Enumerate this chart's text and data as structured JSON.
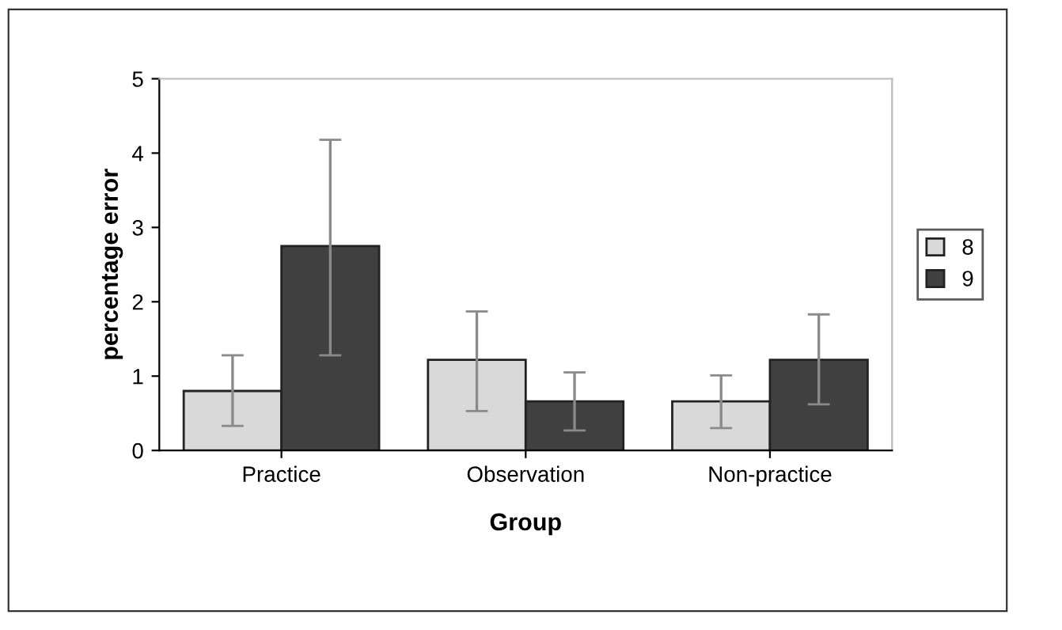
{
  "chart_data": {
    "type": "bar",
    "xlabel": "Group",
    "ylabel": "percentage error",
    "categories": [
      "Practice",
      "Observation",
      "Non-practice"
    ],
    "series": [
      {
        "name": "8",
        "color": "#d9d9d9",
        "values": [
          0.8,
          1.22,
          0.66
        ],
        "errors": [
          [
            0.33,
            1.28
          ],
          [
            0.53,
            1.87
          ],
          [
            0.3,
            1.01
          ]
        ]
      },
      {
        "name": "9",
        "color": "#404040",
        "values": [
          2.75,
          0.66,
          1.22
        ],
        "errors": [
          [
            1.28,
            4.18
          ],
          [
            0.27,
            1.05
          ],
          [
            0.62,
            1.83
          ]
        ]
      }
    ],
    "ylim": [
      0,
      5
    ],
    "yticks": [
      0,
      1,
      2,
      3,
      4,
      5
    ],
    "grid": false,
    "legend": "right"
  }
}
